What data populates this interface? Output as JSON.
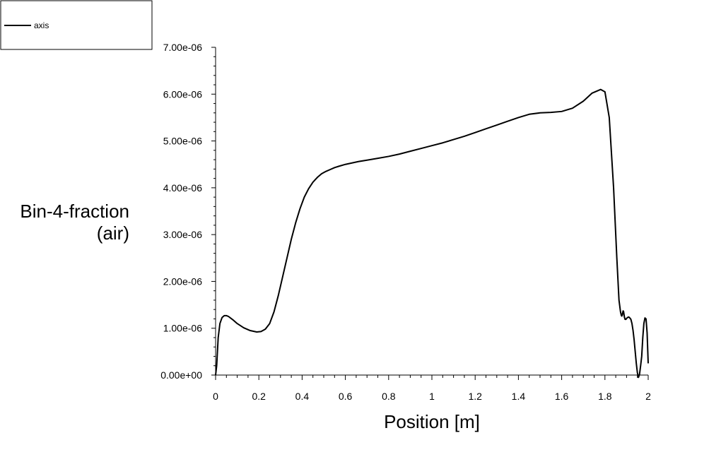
{
  "chart_data": {
    "type": "line",
    "xlabel": "Position [m]",
    "ylabel": [
      "Bin-4-fraction",
      "(air)"
    ],
    "xlim": [
      0,
      2
    ],
    "ylim": [
      0,
      7e-06
    ],
    "x_ticks": [
      "0",
      "0.2",
      "0.4",
      "0.6",
      "0.8",
      "1",
      "1.2",
      "1.4",
      "1.6",
      "1.8",
      "2"
    ],
    "y_ticks": [
      "0.00e+00",
      "1.00e-06",
      "2.00e-06",
      "3.00e-06",
      "4.00e-06",
      "5.00e-06",
      "6.00e-06",
      "7.00e-06"
    ],
    "legend": {
      "position": "top-left",
      "entries": [
        "axis"
      ]
    },
    "grid": false,
    "series": [
      {
        "name": "axis",
        "color": "#000000",
        "x": [
          0,
          0.005,
          0.012,
          0.02,
          0.03,
          0.04,
          0.05,
          0.06,
          0.08,
          0.1,
          0.13,
          0.16,
          0.19,
          0.21,
          0.23,
          0.25,
          0.27,
          0.29,
          0.31,
          0.33,
          0.35,
          0.37,
          0.39,
          0.41,
          0.43,
          0.45,
          0.47,
          0.49,
          0.51,
          0.53,
          0.55,
          0.57,
          0.6,
          0.63,
          0.66,
          0.7,
          0.75,
          0.8,
          0.85,
          0.9,
          0.95,
          1.0,
          1.05,
          1.1,
          1.15,
          1.2,
          1.25,
          1.3,
          1.35,
          1.4,
          1.45,
          1.5,
          1.55,
          1.6,
          1.65,
          1.7,
          1.74,
          1.78,
          1.8,
          1.82,
          1.84,
          1.855,
          1.865,
          1.872,
          1.876,
          1.878,
          1.88,
          1.882,
          1.884,
          1.886,
          1.888,
          1.89,
          1.893,
          1.897,
          1.9,
          1.905,
          1.91,
          1.915,
          1.92,
          1.925,
          1.93,
          1.935,
          1.94,
          1.945,
          1.95,
          1.955,
          1.96,
          1.965,
          1.97,
          1.975,
          1.98,
          1.985,
          1.99,
          1.995,
          2.0
        ],
        "y": [
          0.0,
          2e-07,
          8e-07,
          1.1e-06,
          1.23e-06,
          1.27e-06,
          1.27e-06,
          1.25e-06,
          1.18e-06,
          1.1e-06,
          1.01e-06,
          9.5e-07,
          9.2e-07,
          9.3e-07,
          9.8e-07,
          1.1e-06,
          1.35e-06,
          1.7e-06,
          2.1e-06,
          2.5e-06,
          2.9e-06,
          3.25e-06,
          3.55e-06,
          3.8e-06,
          3.98e-06,
          4.12e-06,
          4.22e-06,
          4.3e-06,
          4.35e-06,
          4.39e-06,
          4.43e-06,
          4.46e-06,
          4.5e-06,
          4.53e-06,
          4.56e-06,
          4.59e-06,
          4.63e-06,
          4.67e-06,
          4.72e-06,
          4.78e-06,
          4.84e-06,
          4.9e-06,
          4.96e-06,
          5.03e-06,
          5.1e-06,
          5.18e-06,
          5.26e-06,
          5.34e-06,
          5.42e-06,
          5.5e-06,
          5.57e-06,
          5.6e-06,
          5.61e-06,
          5.63e-06,
          5.7e-06,
          5.85e-06,
          6.02e-06,
          6.1e-06,
          6.05e-06,
          5.5e-06,
          4e-06,
          2.5e-06,
          1.6e-06,
          1.35e-06,
          1.27e-06,
          1.26e-06,
          1.28e-06,
          1.33e-06,
          1.37e-06,
          1.36e-06,
          1.3e-06,
          1.24e-06,
          1.19e-06,
          1.19e-06,
          1.21e-06,
          1.23e-06,
          1.24e-06,
          1.22e-06,
          1.19e-06,
          1.1e-06,
          9.5e-07,
          7.5e-07,
          5e-07,
          2.5e-07,
          5e-08,
          -5e-08,
          2e-08,
          2e-07,
          4e-07,
          8e-07,
          1.1e-06,
          1.22e-06,
          1.2e-06,
          9e-07,
          2.5e-07
        ]
      }
    ]
  }
}
